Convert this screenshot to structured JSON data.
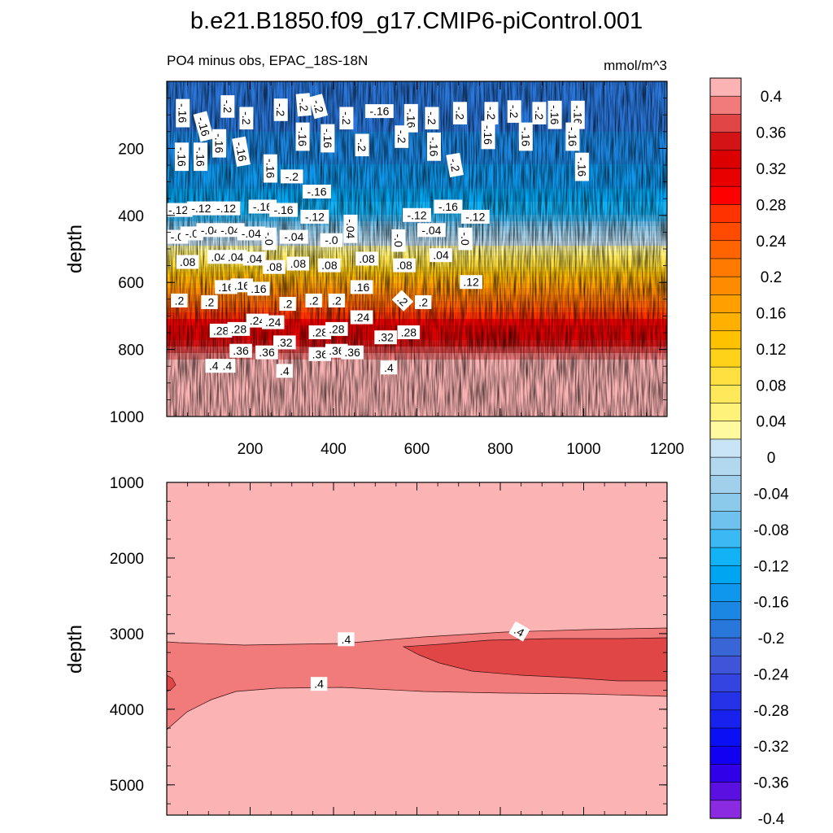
{
  "chart_data": {
    "type": "heatmap",
    "title": "b.e21.B1850.f09_g17.CMIP6-piControl.001",
    "subtitle_left": "PO4 minus obs, EPAC_18S-18N",
    "units": "mmol/m^3",
    "ylabel": "depth",
    "panels": [
      {
        "name": "upper",
        "ylim": [
          1000,
          0
        ],
        "xlim": [
          0,
          1200
        ],
        "xticks": [
          200,
          400,
          600,
          800,
          1000,
          1200
        ],
        "yticks": [
          200,
          400,
          600,
          800,
          1000
        ],
        "x_tick_labels": [
          "200",
          "400",
          "600",
          "800",
          "1000",
          "1200"
        ],
        "y_tick_labels": [
          "200",
          "400",
          "600",
          "800",
          "1000"
        ],
        "profile": [
          {
            "depth": 20,
            "value": -0.2
          },
          {
            "depth": 150,
            "value": -0.18
          },
          {
            "depth": 300,
            "value": -0.15
          },
          {
            "depth": 400,
            "value": -0.1
          },
          {
            "depth": 470,
            "value": -0.01
          },
          {
            "depth": 520,
            "value": 0.06
          },
          {
            "depth": 600,
            "value": 0.16
          },
          {
            "depth": 700,
            "value": 0.27
          },
          {
            "depth": 780,
            "value": 0.35
          },
          {
            "depth": 840,
            "value": 0.41
          },
          {
            "depth": 1000,
            "value": 0.44
          }
        ],
        "contour_labels": [
          {
            "text": "-.16",
            "x": 75,
            "depth": 95,
            "rot": 90
          },
          {
            "text": "-.16",
            "x": 175,
            "depth": 135,
            "rot": 75
          },
          {
            "text": "-.2",
            "x": 290,
            "depth": 75,
            "rot": 90
          },
          {
            "text": "-.2",
            "x": 380,
            "depth": 110,
            "rot": 90
          },
          {
            "text": "-.2",
            "x": 545,
            "depth": 85,
            "rot": 90
          },
          {
            "text": "-.2",
            "x": 655,
            "depth": 70,
            "rot": 85
          },
          {
            "text": "-.2",
            "x": 725,
            "depth": 75,
            "rot": 75
          },
          {
            "text": "-.2",
            "x": 860,
            "depth": 110,
            "rot": 90
          },
          {
            "text": "-.16",
            "x": 1020,
            "depth": 90,
            "rot": 0
          },
          {
            "text": "-.16",
            "x": 1170,
            "depth": 110,
            "rot": 90
          },
          {
            "text": "-.2",
            "x": 1270,
            "depth": 110,
            "rot": 90
          },
          {
            "text": "-.2",
            "x": 1405,
            "depth": 95,
            "rot": 90
          },
          {
            "text": "-.2",
            "x": 1555,
            "depth": 95,
            "rot": 90
          },
          {
            "text": "-.2",
            "x": 1665,
            "depth": 90,
            "rot": 90
          },
          {
            "text": "-.2",
            "x": 1785,
            "depth": 95,
            "rot": 90
          },
          {
            "text": "-.16",
            "x": 1860,
            "depth": 100,
            "rot": 90
          },
          {
            "text": "-.16",
            "x": 1970,
            "depth": 100,
            "rot": 90
          },
          {
            "text": "-.16",
            "x": 70,
            "depth": 225,
            "rot": 90
          },
          {
            "text": "-.16",
            "x": 160,
            "depth": 225,
            "rot": 90
          },
          {
            "text": "-.16",
            "x": 250,
            "depth": 185,
            "rot": 90
          },
          {
            "text": "-.16",
            "x": 355,
            "depth": 210,
            "rot": 80
          },
          {
            "text": "-.16",
            "x": 495,
            "depth": 260,
            "rot": 90
          },
          {
            "text": "-.16",
            "x": 650,
            "depth": 165,
            "rot": 90
          },
          {
            "text": "-.16",
            "x": 770,
            "depth": 170,
            "rot": 90
          },
          {
            "text": "-.2",
            "x": 935,
            "depth": 190,
            "rot": 90
          },
          {
            "text": "-.2",
            "x": 1125,
            "depth": 165,
            "rot": 90
          },
          {
            "text": "-.16",
            "x": 1280,
            "depth": 195,
            "rot": 90
          },
          {
            "text": "-.2",
            "x": 1380,
            "depth": 250,
            "rot": 80
          },
          {
            "text": "-.16",
            "x": 1540,
            "depth": 160,
            "rot": 90
          },
          {
            "text": "-.16",
            "x": 1720,
            "depth": 165,
            "rot": 90
          },
          {
            "text": "-.16",
            "x": 1945,
            "depth": 165,
            "rot": 90
          },
          {
            "text": "-.16",
            "x": 1990,
            "depth": 255,
            "rot": 90
          }
        ],
        "contour_labels_mid": [
          {
            "text": "-.16",
            "x": 720,
            "depth": 330,
            "rot": 0
          },
          {
            "text": "-.2",
            "x": 600,
            "depth": 285,
            "rot": 0
          }
        ]
      },
      {
        "name": "lower",
        "ylim": [
          5400,
          1000
        ],
        "xlim": [
          0,
          1200
        ],
        "xticks": [
          200,
          400,
          600,
          800,
          1000,
          1200
        ],
        "yticks": [
          1000,
          2000,
          3000,
          4000,
          5000
        ],
        "x_tick_labels": [],
        "y_tick_labels": [
          "1000",
          "2000",
          "3000",
          "4000",
          "5000"
        ],
        "contour_labels": [
          {
            "text": ".4",
            "x": 430,
            "depth": 3080,
            "rot": 0
          },
          {
            "text": ".4",
            "x": 845,
            "depth": 2975,
            "rot": 30
          },
          {
            "text": ".4",
            "x": 365,
            "depth": 3670,
            "rot": 0
          }
        ]
      }
    ],
    "colorbar": {
      "levels": [
        -0.4,
        -0.38,
        -0.36,
        -0.34,
        -0.32,
        -0.3,
        -0.28,
        -0.26,
        -0.24,
        -0.22,
        -0.2,
        -0.18,
        -0.16,
        -0.14,
        -0.12,
        -0.1,
        -0.08,
        -0.06,
        -0.04,
        -0.02,
        0,
        0.02,
        0.04,
        0.06,
        0.08,
        0.1,
        0.12,
        0.14,
        0.16,
        0.18,
        0.2,
        0.22,
        0.24,
        0.26,
        0.28,
        0.3,
        0.32,
        0.34,
        0.36,
        0.38,
        0.4,
        0.42
      ],
      "tick_labels": [
        "0.4",
        "0.36",
        "0.32",
        "0.28",
        "0.24",
        "0.2",
        "0.16",
        "0.12",
        "0.08",
        "0.04",
        "0",
        "-0.04",
        "-0.08",
        "-0.12",
        "-0.16",
        "-0.2",
        "-0.24",
        "-0.28",
        "-0.32",
        "-0.36",
        "-0.4"
      ],
      "colors": [
        "#fbb3b3",
        "#f17b7b",
        "#e04646",
        "#d41414",
        "#dc0000",
        "#e80000",
        "#ff0000",
        "#ff3200",
        "#ff4b00",
        "#ff6400",
        "#ff7a00",
        "#ff8c00",
        "#ff9f00",
        "#ffb000",
        "#ffc200",
        "#ffd21a",
        "#ffe040",
        "#ffe95a",
        "#fff27a",
        "#fff9a0",
        "#c9e4f4",
        "#b1d8ef",
        "#a0d0ec",
        "#8ccaeb",
        "#6fc1ee",
        "#3ab9f5",
        "#12b2f7",
        "#00a5f2",
        "#0e97ec",
        "#1b87e2",
        "#2a77dc",
        "#3866d6",
        "#3e55d9",
        "#3344e0",
        "#2533e8",
        "#1822ef",
        "#0a10f4",
        "#1200f2",
        "#3000e8",
        "#5a10e0",
        "#8a2be2"
      ]
    },
    "lower_panel_fields": {
      "values": [
        0.43,
        0.41,
        0.39
      ],
      "colors": [
        "#fbb3b3",
        "#f17b7b",
        "#e04646"
      ]
    }
  }
}
